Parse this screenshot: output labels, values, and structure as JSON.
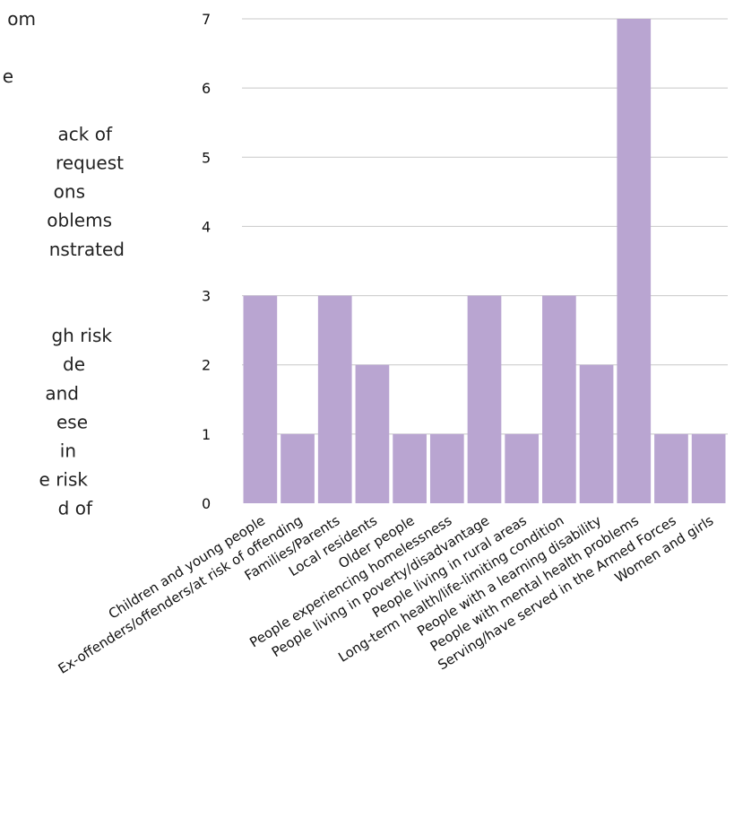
{
  "side_text": {
    "lines": [
      "om",
      "",
      "e",
      "",
      "ack of",
      "request",
      "ons",
      "oblems",
      "nstrated",
      "",
      "",
      "gh risk",
      "de",
      "and",
      "ese",
      "in",
      "e risk",
      "d of"
    ]
  },
  "chart_data": {
    "type": "bar",
    "categories": [
      "Children and young people",
      "Ex-offenders/offenders/at risk of offending",
      "Families/Parents",
      "Local residents",
      "Older people",
      "People experiencing homelessness",
      "People living in poverty/disadvantage",
      "People living in rural areas",
      "Long-term health/life-limiting condition",
      "People with a learning disability",
      "People with mental health problems",
      "Serving/have served in the Armed Forces",
      "Women and girls"
    ],
    "values": [
      3,
      1,
      3,
      2,
      1,
      1,
      3,
      1,
      3,
      2,
      7,
      1,
      1
    ],
    "yticks": [
      "0",
      "1",
      "2",
      "3",
      "4",
      "5",
      "6",
      "7"
    ],
    "ylim": [
      0,
      7
    ],
    "grid": true,
    "bar_color": "#b9a5d1",
    "gridline_color": "#c8c8c8"
  }
}
